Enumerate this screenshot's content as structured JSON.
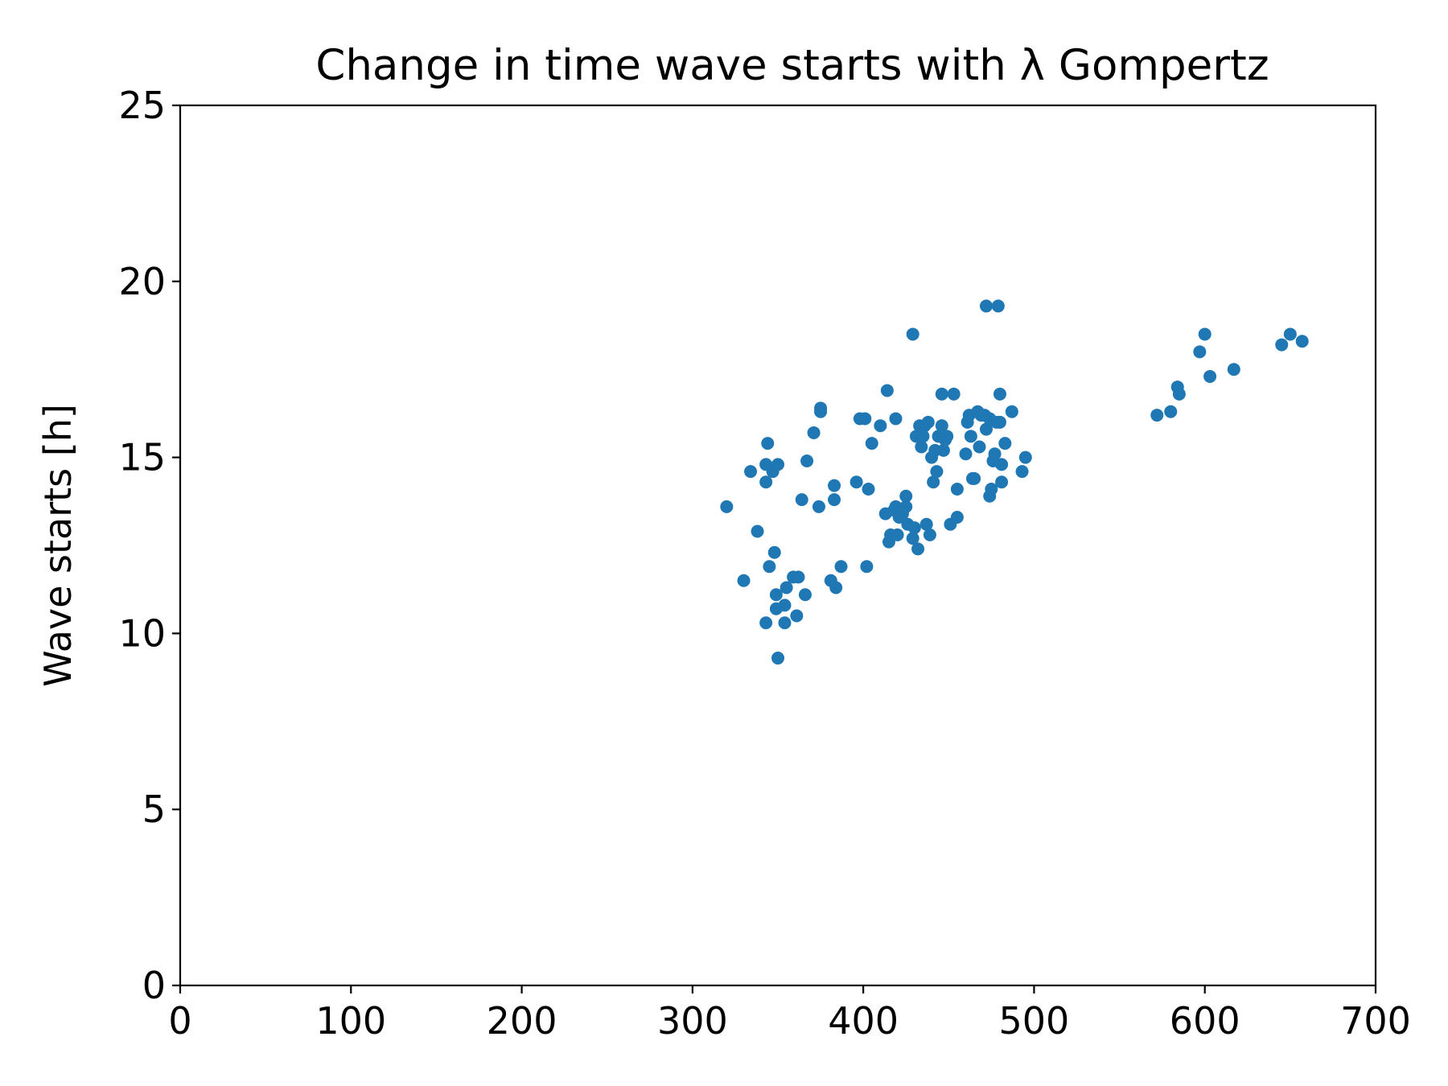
{
  "chart_data": {
    "type": "scatter",
    "title": "Change in time wave starts with λ Gompertz",
    "xlabel": "",
    "ylabel": "Wave starts [h]",
    "xlim": [
      0,
      700
    ],
    "ylim": [
      0,
      25
    ],
    "x_ticks": [
      "0",
      "100",
      "200",
      "300",
      "400",
      "500",
      "600",
      "700"
    ],
    "y_ticks": [
      "0",
      "5",
      "10",
      "15",
      "20",
      "25"
    ],
    "grid": false,
    "legend": "none",
    "marker_color": "#1f77b4",
    "series": [
      {
        "points": [
          [
            320,
            13.6
          ],
          [
            330,
            11.5
          ],
          [
            334,
            14.6
          ],
          [
            338,
            12.9
          ],
          [
            343,
            10.3
          ],
          [
            343,
            14.3
          ],
          [
            343,
            14.8
          ],
          [
            344,
            15.4
          ],
          [
            345,
            11.9
          ],
          [
            347,
            14.6
          ],
          [
            348,
            12.3
          ],
          [
            349,
            11.1
          ],
          [
            349,
            10.7
          ],
          [
            350,
            9.3
          ],
          [
            350,
            14.8
          ],
          [
            354,
            10.3
          ],
          [
            354,
            10.8
          ],
          [
            355,
            11.3
          ],
          [
            359,
            11.6
          ],
          [
            361,
            10.5
          ],
          [
            362,
            11.6
          ],
          [
            364,
            13.8
          ],
          [
            366,
            11.1
          ],
          [
            367,
            14.9
          ],
          [
            371,
            15.7
          ],
          [
            374,
            13.6
          ],
          [
            375,
            16.4
          ],
          [
            375,
            16.3
          ],
          [
            381,
            11.5
          ],
          [
            383,
            14.2
          ],
          [
            383,
            13.8
          ],
          [
            384,
            11.3
          ],
          [
            387,
            11.9
          ],
          [
            396,
            14.3
          ],
          [
            398,
            16.1
          ],
          [
            401,
            16.1
          ],
          [
            402,
            11.9
          ],
          [
            403,
            14.1
          ],
          [
            405,
            15.4
          ],
          [
            410,
            15.9
          ],
          [
            413,
            13.4
          ],
          [
            414,
            16.9
          ],
          [
            415,
            12.6
          ],
          [
            416,
            12.8
          ],
          [
            418,
            13.5
          ],
          [
            419,
            16.1
          ],
          [
            419,
            13.6
          ],
          [
            420,
            12.8
          ],
          [
            421,
            13.3
          ],
          [
            423,
            13.4
          ],
          [
            425,
            13.9
          ],
          [
            425,
            13.6
          ],
          [
            426,
            13.1
          ],
          [
            429,
            18.5
          ],
          [
            429,
            12.7
          ],
          [
            430,
            13.0
          ],
          [
            431,
            15.6
          ],
          [
            432,
            12.4
          ],
          [
            433,
            15.9
          ],
          [
            434,
            15.3
          ],
          [
            435,
            15.6
          ],
          [
            436,
            15.9
          ],
          [
            437,
            13.1
          ],
          [
            438,
            16.0
          ],
          [
            439,
            12.8
          ],
          [
            440,
            15.0
          ],
          [
            441,
            14.3
          ],
          [
            442,
            15.2
          ],
          [
            443,
            14.6
          ],
          [
            444,
            15.6
          ],
          [
            446,
            16.8
          ],
          [
            446,
            15.9
          ],
          [
            447,
            15.2
          ],
          [
            448,
            15.5
          ],
          [
            449,
            15.6
          ],
          [
            451,
            13.1
          ],
          [
            453,
            16.8
          ],
          [
            455,
            13.3
          ],
          [
            455,
            14.1
          ],
          [
            460,
            15.1
          ],
          [
            461,
            16.0
          ],
          [
            462,
            16.2
          ],
          [
            463,
            15.6
          ],
          [
            464,
            14.4
          ],
          [
            465,
            14.4
          ],
          [
            467,
            16.3
          ],
          [
            468,
            15.3
          ],
          [
            469,
            16.2
          ],
          [
            471,
            16.2
          ],
          [
            472,
            19.3
          ],
          [
            472,
            15.8
          ],
          [
            474,
            16.1
          ],
          [
            474,
            13.9
          ],
          [
            475,
            14.1
          ],
          [
            476,
            14.9
          ],
          [
            477,
            15.1
          ],
          [
            478,
            16.0
          ],
          [
            479,
            19.3
          ],
          [
            480,
            16.8
          ],
          [
            480,
            16.0
          ],
          [
            481,
            14.8
          ],
          [
            481,
            14.3
          ],
          [
            483,
            15.4
          ],
          [
            487,
            16.3
          ],
          [
            493,
            14.6
          ],
          [
            495,
            15.0
          ],
          [
            572,
            16.2
          ],
          [
            580,
            16.3
          ],
          [
            597,
            18.0
          ],
          [
            600,
            18.5
          ],
          [
            603,
            17.3
          ],
          [
            584,
            17.0
          ],
          [
            585,
            16.8
          ],
          [
            617,
            17.5
          ],
          [
            645,
            18.2
          ],
          [
            650,
            18.5
          ],
          [
            657,
            18.3
          ]
        ]
      }
    ]
  }
}
